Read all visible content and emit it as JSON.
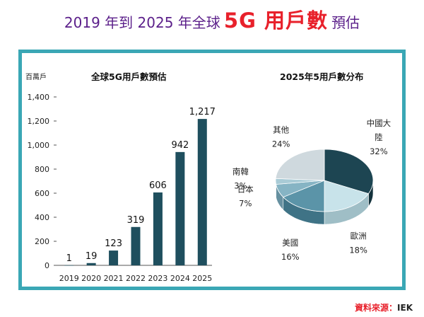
{
  "header": {
    "title_part1": "2019 年到 2025 年全球",
    "title_part2": "5G 用戶數",
    "title_part3": "預估"
  },
  "source": {
    "label": "資料來源：",
    "value": "IEK"
  },
  "colors": {
    "title_purple": "#5b1f8a",
    "title_red": "#e8212b",
    "frame": "#3aa7b5",
    "bar": "#1f4f5e"
  },
  "chart_data": [
    {
      "type": "bar",
      "title": "全球5G用戶數預估",
      "ylabel": "百萬戶",
      "xlabel": "",
      "categories": [
        "2019",
        "2020",
        "2021",
        "2022",
        "2023",
        "2024",
        "2025"
      ],
      "values": [
        1,
        19,
        123,
        319,
        606,
        942,
        1217
      ],
      "data_labels": [
        "1",
        "19",
        "123",
        "319",
        "606",
        "942",
        "1,217"
      ],
      "ylim": [
        0,
        1400
      ],
      "yticks": [
        0,
        200,
        400,
        600,
        800,
        1000,
        1200,
        1400
      ],
      "ytick_labels": [
        "0",
        "200",
        "400",
        "600",
        "800",
        "1,000",
        "1,200",
        "1,400"
      ],
      "grid": false
    },
    {
      "type": "pie",
      "title": "2025年5用戶數分布",
      "slices": [
        {
          "name": "中國大陸",
          "label_lines": [
            "中國大",
            "陸"
          ],
          "value": 32,
          "pct": "32%",
          "color": "#1d4552",
          "side": "#14323c"
        },
        {
          "name": "歐洲",
          "label_lines": [
            "歐洲"
          ],
          "value": 18,
          "pct": "18%",
          "color": "#c8e3ea",
          "side": "#9fbec6"
        },
        {
          "name": "美國",
          "label_lines": [
            "美國"
          ],
          "value": 16,
          "pct": "16%",
          "color": "#5b94a8",
          "side": "#3f7386"
        },
        {
          "name": "日本",
          "label_lines": [
            "日本"
          ],
          "value": 7,
          "pct": "7%",
          "color": "#86b4c4",
          "side": "#6690a0"
        },
        {
          "name": "南韓",
          "label_lines": [
            "南韓"
          ],
          "value": 3,
          "pct": "3%",
          "color": "#a9cbd6",
          "side": "#86a8b2"
        },
        {
          "name": "其他",
          "label_lines": [
            "其他"
          ],
          "value": 24,
          "pct": "24%",
          "color": "#cfd9de",
          "side": "#aab6bc"
        }
      ]
    }
  ]
}
